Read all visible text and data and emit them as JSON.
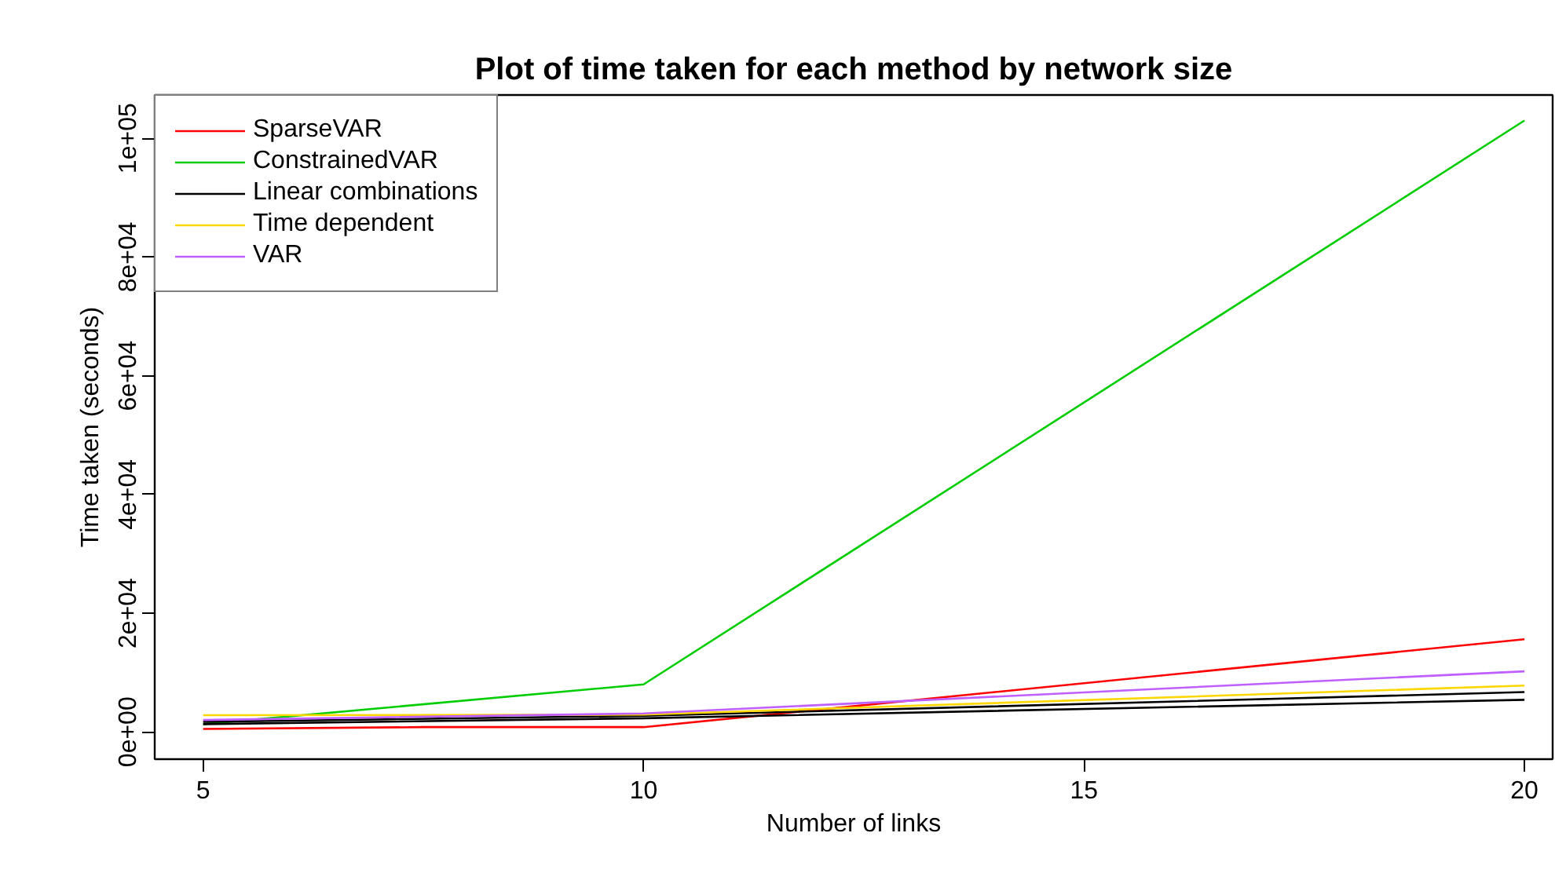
{
  "chart_data": {
    "type": "line",
    "title": "Plot of time taken for each method by network size",
    "xlabel": "Number of links",
    "ylabel": "Time taken (seconds)",
    "xlim": [
      4.45,
      20.32
    ],
    "ylim": [
      -4600,
      107300
    ],
    "xticks": [
      5,
      10,
      15,
      20
    ],
    "yticks": [
      {
        "value": 0,
        "label": "0e+00"
      },
      {
        "value": 20000,
        "label": "2e+04"
      },
      {
        "value": 40000,
        "label": "4e+04"
      },
      {
        "value": 60000,
        "label": "6e+04"
      },
      {
        "value": 80000,
        "label": "8e+04"
      },
      {
        "value": 100000,
        "label": "1e+05"
      }
    ],
    "grid": false,
    "legend": "top left",
    "series": [
      {
        "name": "SparseVAR",
        "color": "#ff0000",
        "x": [
          5,
          7.5,
          10,
          20
        ],
        "values": [
          500,
          800,
          800,
          15600
        ]
      },
      {
        "name": "ConstrainedVAR",
        "color": "#00cd00",
        "x": [
          5,
          10,
          20
        ],
        "values": [
          1300,
          8000,
          103000
        ]
      },
      {
        "name": "Linear combinations",
        "color": "#000000",
        "x": [
          5,
          10,
          20
        ],
        "values": [
          1700,
          2700,
          6700
        ]
      },
      {
        "color": "#000000",
        "x": [
          5,
          10,
          20
        ],
        "values": [
          1300,
          2300,
          5400
        ]
      },
      {
        "name": "Time dependent",
        "color": "#ffd700",
        "x": [
          5,
          10,
          20
        ],
        "values": [
          2800,
          2900,
          7800
        ]
      },
      {
        "name": "VAR",
        "color": "#bf5fff",
        "x": [
          5,
          10,
          20
        ],
        "values": [
          2000,
          3100,
          10200
        ]
      }
    ]
  }
}
